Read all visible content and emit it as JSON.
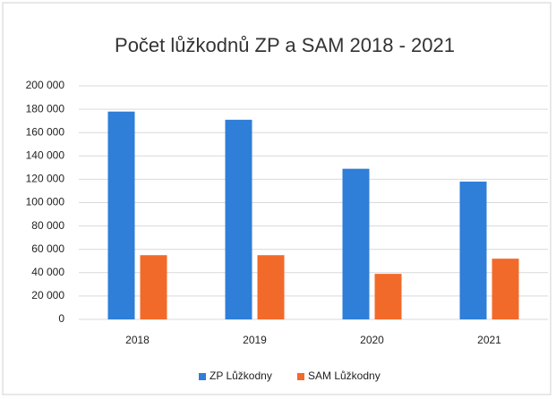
{
  "chart_data": {
    "type": "bar",
    "title": "Počet lůžkodnů ZP a SAM 2018 - 2021",
    "categories": [
      "2018",
      "2019",
      "2020",
      "2021"
    ],
    "series": [
      {
        "name": "ZP Lůžkodny",
        "color": "#2f7ed8",
        "values": [
          178000,
          171000,
          129000,
          118000
        ]
      },
      {
        "name": "SAM Lůžkodny",
        "color": "#f26a2a",
        "values": [
          55000,
          55000,
          39000,
          52000
        ]
      }
    ],
    "ylim": [
      0,
      200000
    ],
    "yticks": [
      0,
      {
        "value": 20000,
        "label": "20 000"
      },
      {
        "value": 40000,
        "label": "40 000"
      },
      {
        "value": 60000,
        "label": "60 000"
      },
      {
        "value": 80000,
        "label": "80 000"
      },
      {
        "value": 100000,
        "label": "100 000"
      },
      {
        "value": 120000,
        "label": "120 000"
      },
      {
        "value": 140000,
        "label": "140 000"
      },
      {
        "value": 160000,
        "label": "160 000"
      },
      {
        "value": 180000,
        "label": "180 000"
      },
      {
        "value": 200000,
        "label": "200 000"
      }
    ],
    "grid": true,
    "legend": "bottom"
  }
}
